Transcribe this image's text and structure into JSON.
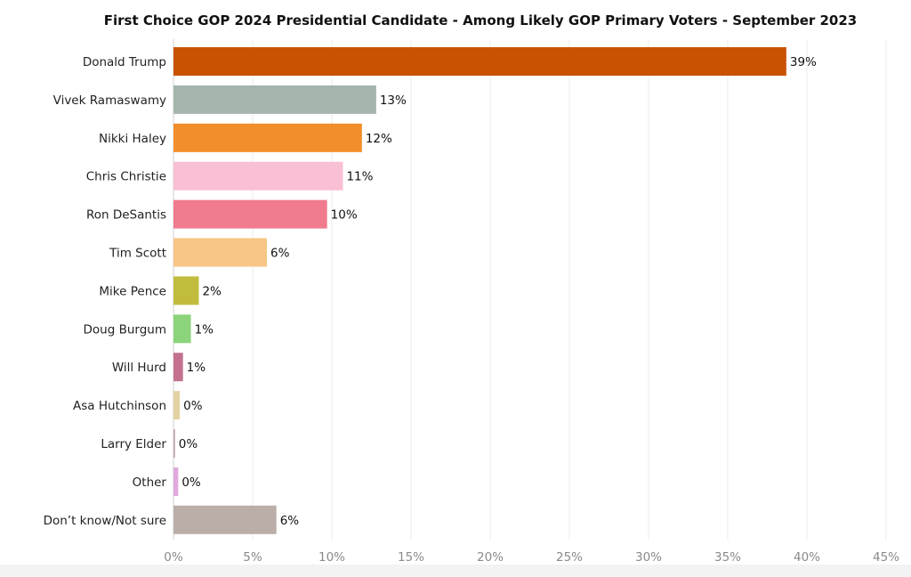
{
  "chart_data": {
    "type": "bar",
    "orientation": "horizontal",
    "title": "First Choice GOP 2024 Presidential Candidate - Among Likely GOP Primary Voters - September 2023",
    "categories": [
      "Donald Trump",
      "Vivek Ramaswamy",
      "Nikki Haley",
      "Chris Christie",
      "Ron DeSantis",
      "Tim Scott",
      "Mike Pence",
      "Doug Burgum",
      "Will Hurd",
      "Asa Hutchinson",
      "Larry Elder",
      "Other",
      "Don’t know/Not sure"
    ],
    "values": [
      38.7,
      12.8,
      11.9,
      10.7,
      9.7,
      5.9,
      1.6,
      1.1,
      0.6,
      0.4,
      0.1,
      0.3,
      6.5
    ],
    "value_labels": [
      "39%",
      "13%",
      "12%",
      "11%",
      "10%",
      "6%",
      "2%",
      "1%",
      "1%",
      "0%",
      "0%",
      "0%",
      "6%"
    ],
    "colors": [
      "#c85200",
      "#a5b5ac",
      "#f28e2b",
      "#f9bfd4",
      "#f07a8e",
      "#f7c585",
      "#c2bc3e",
      "#8bd47b",
      "#c3718f",
      "#e3d3a2",
      "#c4a6b1",
      "#e0a9dd",
      "#bbaea9"
    ],
    "xlim": [
      0,
      45
    ],
    "xticks": [
      0,
      5,
      10,
      15,
      20,
      25,
      30,
      35,
      40,
      45
    ],
    "xtick_labels": [
      "0%",
      "5%",
      "10%",
      "15%",
      "20%",
      "25%",
      "30%",
      "35%",
      "40%",
      "45%"
    ],
    "xlabel": "",
    "ylabel": "",
    "grid": "vertical"
  }
}
